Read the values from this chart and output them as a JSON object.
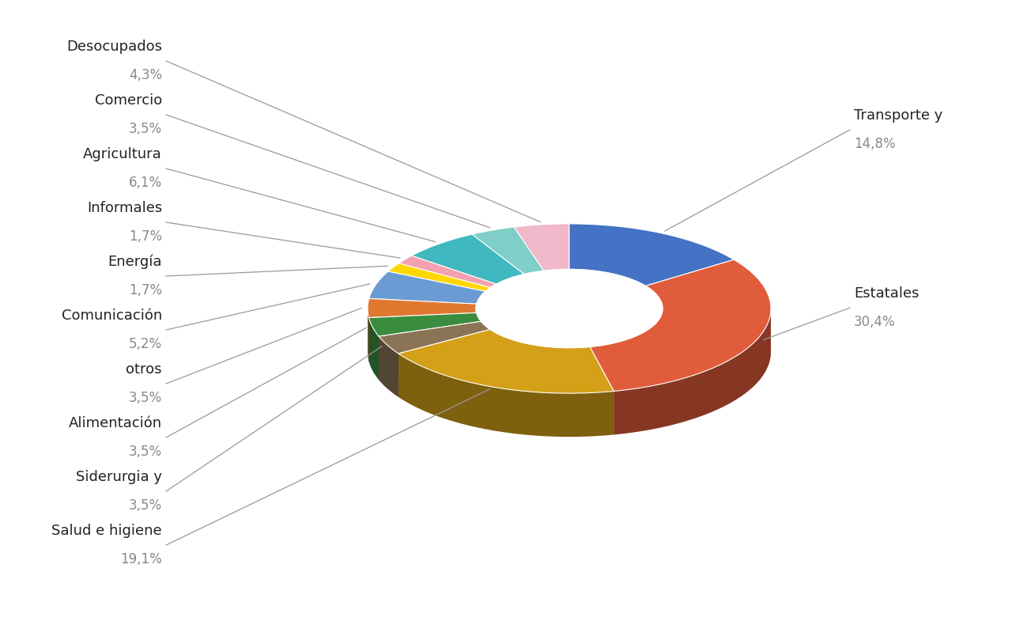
{
  "labels": [
    "Transporte y",
    "Estatales",
    "Salud e higiene",
    "Siderurgia y",
    "Alimentación",
    "otros",
    "Comunicación",
    "Energía",
    "Informales",
    "Agricultura",
    "Comercio",
    "Desocupados"
  ],
  "values": [
    14.8,
    30.4,
    19.1,
    3.5,
    3.5,
    3.5,
    5.2,
    1.7,
    1.7,
    6.1,
    3.5,
    4.3
  ],
  "colors": [
    "#4472C4",
    "#E05C3A",
    "#D4A017",
    "#8B7355",
    "#3A8C3F",
    "#E07830",
    "#6B9BD2",
    "#FFD700",
    "#F4A0B0",
    "#40B8C0",
    "#80CEC8",
    "#F0B8C8"
  ],
  "pct_labels": [
    "14,8%",
    "30,4%",
    "19,1%",
    "3,5%",
    "3,5%",
    "3,5%",
    "5,2%",
    "1,7%",
    "1,7%",
    "6,1%",
    "3,5%",
    "4,3%"
  ],
  "background_color": "#FFFFFF"
}
